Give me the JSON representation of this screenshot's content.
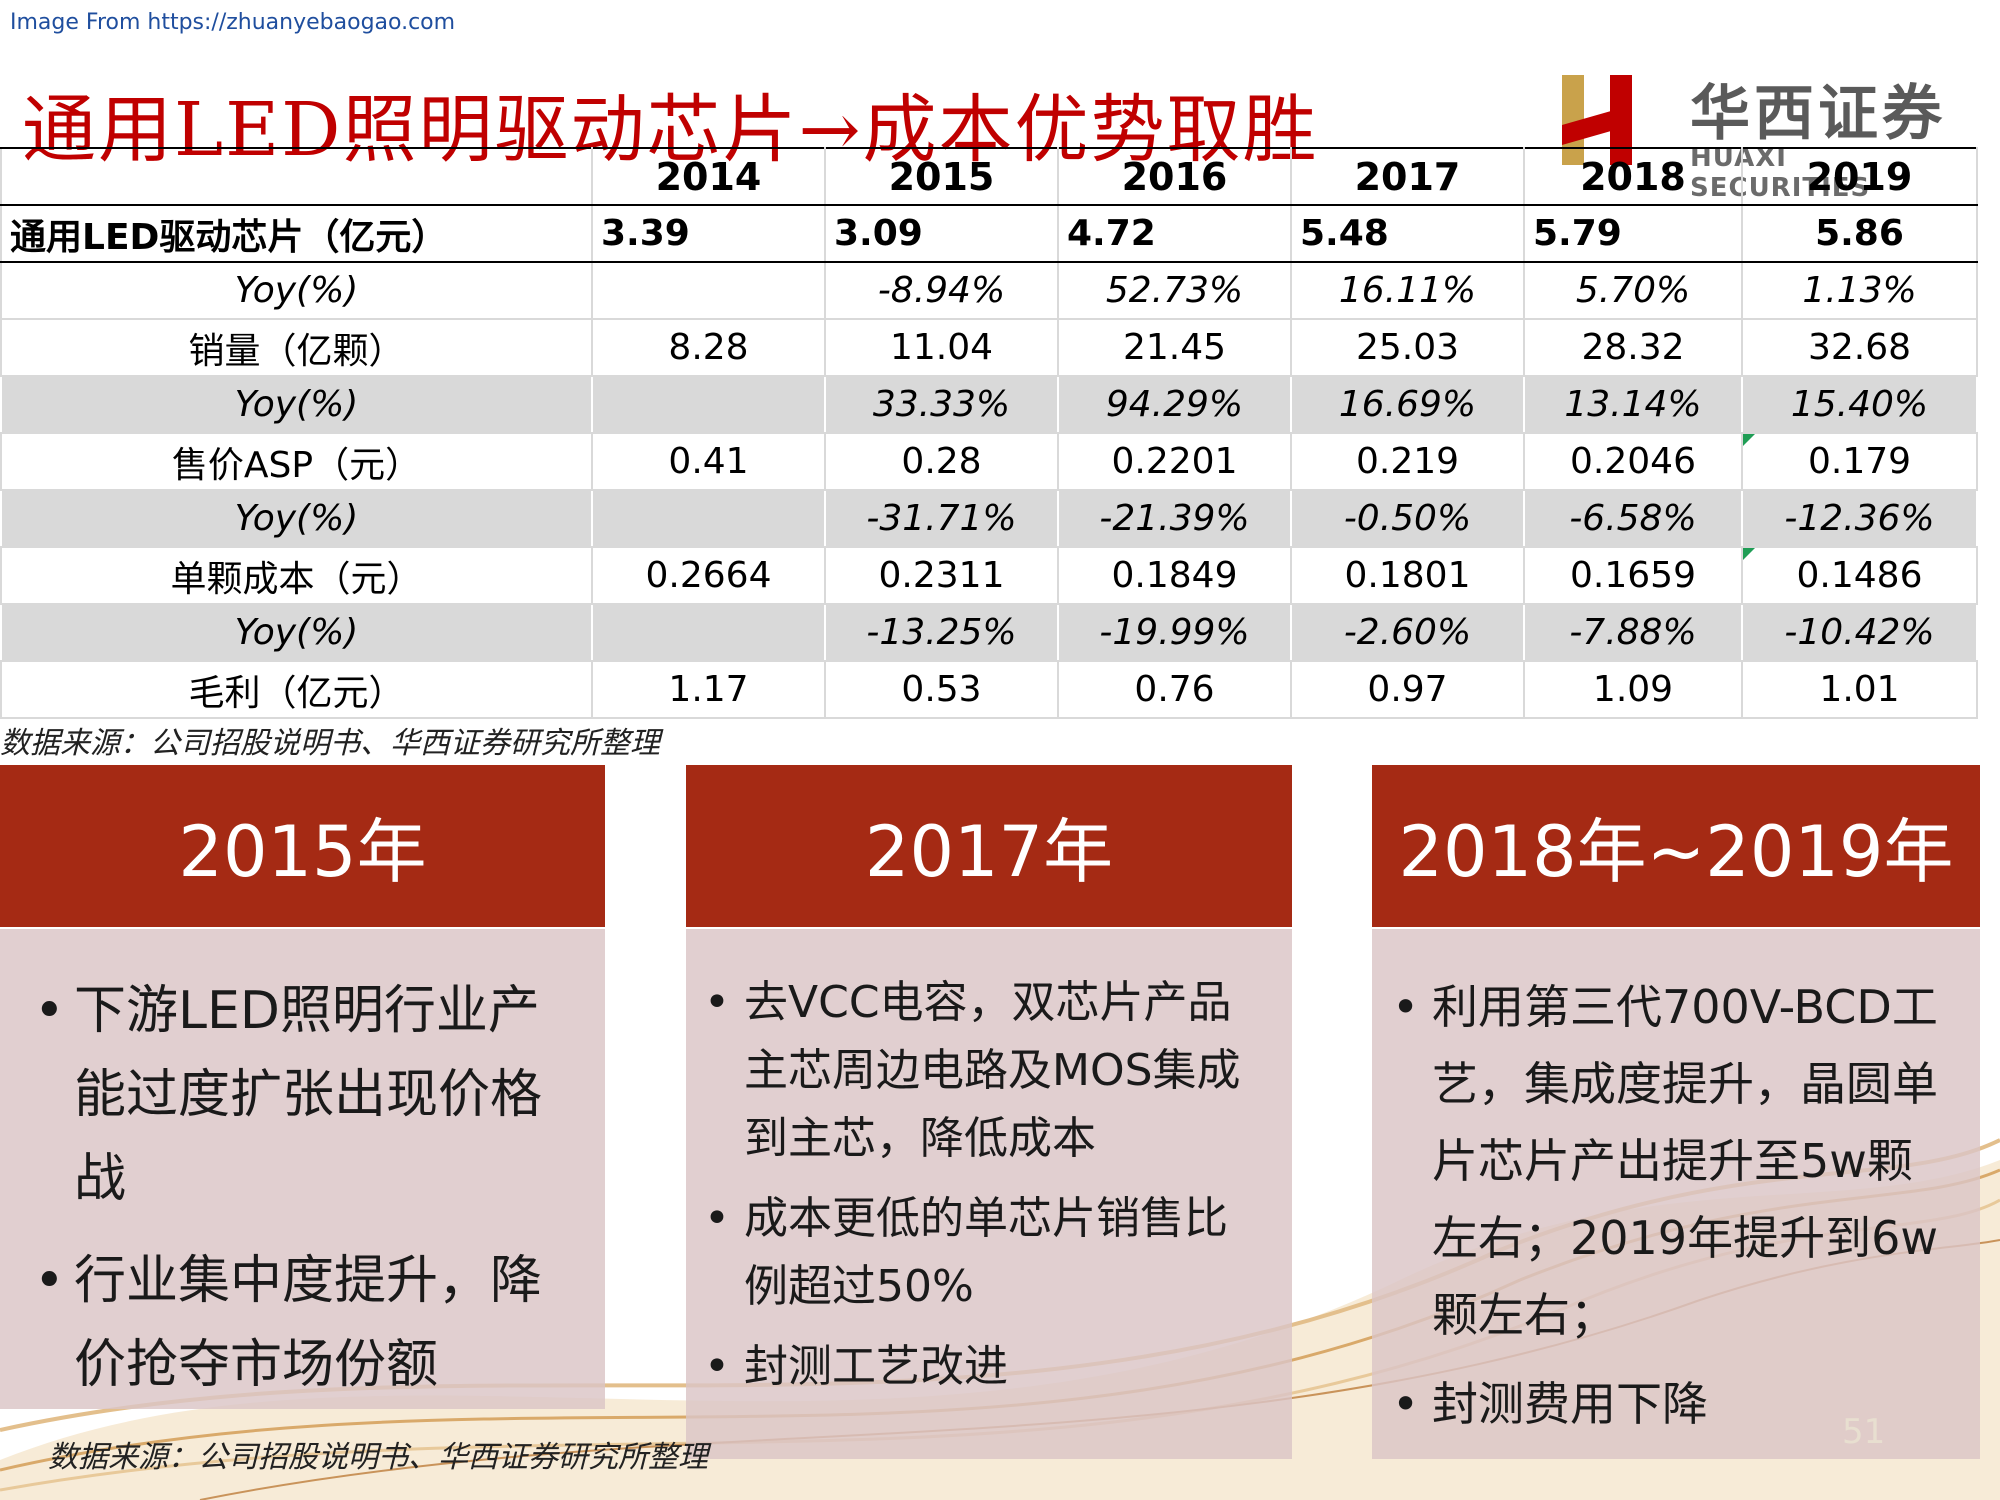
{
  "source_url": "Image From https://zhuanyebaogao.com",
  "title": "通用LED照明驱动芯片→成本优势取胜",
  "logo": {
    "cn": "华西证券",
    "en": "HUAXI SECURITIES"
  },
  "table": {
    "years": [
      "2014",
      "2015",
      "2016",
      "2017",
      "2018",
      "2019"
    ],
    "rows": [
      {
        "label": "通用LED驱动芯片（亿元）",
        "values": [
          "3.39",
          "3.09",
          "4.72",
          "5.48",
          "5.79",
          "5.86"
        ]
      },
      {
        "label": "Yoy(%)",
        "values": [
          "",
          "-8.94%",
          "52.73%",
          "16.11%",
          "5.70%",
          "1.13%"
        ]
      },
      {
        "label": "销量（亿颗）",
        "values": [
          "8.28",
          "11.04",
          "21.45",
          "25.03",
          "28.32",
          "32.68"
        ]
      },
      {
        "label": "Yoy(%)",
        "values": [
          "",
          "33.33%",
          "94.29%",
          "16.69%",
          "13.14%",
          "15.40%"
        ]
      },
      {
        "label": "售价ASP（元）",
        "values": [
          "0.41",
          "0.28",
          "0.2201",
          "0.219",
          "0.2046",
          "0.179"
        ]
      },
      {
        "label": "Yoy(%)",
        "values": [
          "",
          "-31.71%",
          "-21.39%",
          "-0.50%",
          "-6.58%",
          "-12.36%"
        ]
      },
      {
        "label": "单颗成本（元）",
        "values": [
          "0.2664",
          "0.2311",
          "0.1849",
          "0.1801",
          "0.1659",
          "0.1486"
        ]
      },
      {
        "label": "Yoy(%)",
        "values": [
          "",
          "-13.25%",
          "-19.99%",
          "-2.60%",
          "-7.88%",
          "-10.42%"
        ]
      },
      {
        "label": "毛利（亿元）",
        "values": [
          "1.17",
          "0.53",
          "0.76",
          "0.97",
          "1.09",
          "1.01"
        ]
      }
    ]
  },
  "source_note": "数据来源：公司招股说明书、华西证券研究所整理",
  "cards": [
    {
      "heading": "2015年",
      "bullets": [
        "下游LED照明行业产能过度扩张出现价格战",
        "行业集中度提升，降价抢夺市场份额"
      ]
    },
    {
      "heading": "2017年",
      "bullets": [
        "去VCC电容，双芯片产品主芯周边电路及MOS集成到主芯，降低成本",
        "成本更低的单芯片销售比例超过50%",
        "封测工艺改进"
      ]
    },
    {
      "heading": "2018年~2019年",
      "bullets": [
        "利用第三代700V-BCD工艺，集成度提升，晶圆单片芯片产出提升至5w颗左右；2019年提升到6w颗左右；",
        "封测费用下降"
      ]
    }
  ],
  "bottom_note": "数据来源：公司招股说明书、华西证券研究所整理",
  "page_number": "51",
  "colors": {
    "title_red": "#c00000",
    "card_header": "#a52a14",
    "card_body": "#dac4c6",
    "row_shade": "#d9d9d9"
  }
}
